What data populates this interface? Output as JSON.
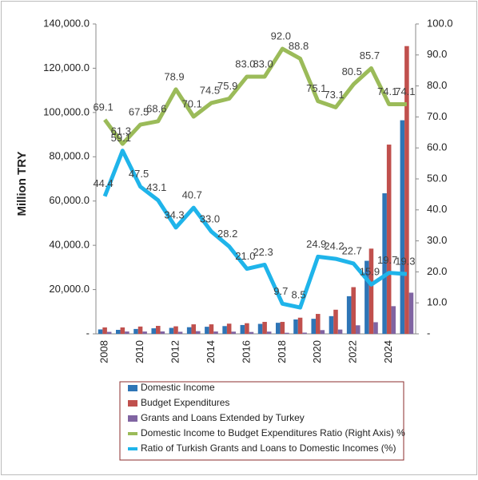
{
  "chart_data": {
    "type": "bar",
    "y_axis_label": "Million TRY",
    "categories": [
      "2008",
      null,
      "2010",
      null,
      "2012",
      null,
      "2014",
      null,
      "2016",
      null,
      "2018",
      null,
      "2020",
      null,
      "2022",
      null,
      "2024",
      null
    ],
    "ylim": [
      0,
      140000
    ],
    "yticks": [
      {
        "value": 0,
        "label": "-"
      },
      {
        "value": 20000,
        "label": "20,000.0"
      },
      {
        "value": 40000,
        "label": "40,000.0"
      },
      {
        "value": 60000,
        "label": "60,000.0"
      },
      {
        "value": 80000,
        "label": "80,000.0"
      },
      {
        "value": 100000,
        "label": "100,000.0"
      },
      {
        "value": 120000,
        "label": "120,000.0"
      },
      {
        "value": 140000,
        "label": "140,000.0"
      }
    ],
    "y2lim": [
      0,
      100
    ],
    "y2ticks": [
      {
        "value": 0,
        "label": "-"
      },
      {
        "value": 10,
        "label": "10.0"
      },
      {
        "value": 20,
        "label": "20.0"
      },
      {
        "value": 30,
        "label": "30.0"
      },
      {
        "value": 40,
        "label": "40.0"
      },
      {
        "value": 50,
        "label": "50.0"
      },
      {
        "value": 60,
        "label": "60.0"
      },
      {
        "value": 70,
        "label": "70.0"
      },
      {
        "value": 80,
        "label": "80.0"
      },
      {
        "value": 90,
        "label": "90.0"
      },
      {
        "value": 100,
        "label": "100.0"
      }
    ],
    "series": [
      {
        "name": "Domestic Income",
        "color": "#2e75b6",
        "values": [
          2000,
          1800,
          2200,
          2500,
          2700,
          3000,
          3200,
          3500,
          4000,
          4500,
          5000,
          6500,
          6800,
          8000,
          17000,
          33000,
          63500,
          96500
        ]
      },
      {
        "name": "Budget Expenditures",
        "color": "#c0504d",
        "values": [
          2900,
          2900,
          3300,
          3600,
          3400,
          4300,
          4300,
          4600,
          4800,
          5400,
          5400,
          7300,
          9000,
          10900,
          21100,
          38500,
          85500,
          130000
        ]
      },
      {
        "name": "Grants and Loans Extended by Turkey",
        "color": "#8064a2",
        "values": [
          890,
          1060,
          1045,
          1080,
          930,
          1220,
          1060,
          990,
          840,
          1000,
          490,
          550,
          1690,
          1940,
          3860,
          5250,
          12500,
          18600
        ]
      },
      {
        "name": "Domestic Income to Budget Expenditures Ratio (Right Axis) %",
        "type": "line",
        "axis": "y2",
        "color": "#9bbb59",
        "values": [
          69.1,
          61.3,
          67.5,
          68.6,
          78.9,
          70.1,
          74.5,
          75.9,
          83.0,
          83.0,
          92.0,
          88.8,
          75.1,
          73.1,
          80.5,
          85.7,
          74.1,
          74.1
        ],
        "value_labels": [
          "69.1",
          "61.3",
          "67.5",
          "68.6",
          "78.9",
          "70.1",
          "74.5",
          "75.9",
          "83.0",
          "83.0",
          "92.0",
          "88.8",
          "75.1",
          "73.1",
          "80.5",
          "85.7",
          "74.1",
          "74.1"
        ]
      },
      {
        "name": "Ratio of Turkish Grants and Loans to Domestic Incomes (%)",
        "type": "line",
        "axis": "y2",
        "color": "#1fb4ea",
        "values": [
          44.4,
          59.1,
          47.5,
          43.1,
          34.3,
          40.7,
          33.0,
          28.2,
          21.0,
          22.3,
          9.7,
          8.5,
          24.9,
          24.2,
          22.7,
          15.9,
          19.7,
          19.3
        ],
        "value_labels": [
          "44.4",
          "59.1",
          "47.5",
          "43.1",
          "34.3",
          "40.7",
          "33.0",
          "28.2",
          "21.0",
          "22.3",
          "9.7",
          "8.5",
          "24.9",
          "24.2",
          "22.7",
          "15.9",
          "19.7",
          "19.3"
        ]
      }
    ]
  }
}
